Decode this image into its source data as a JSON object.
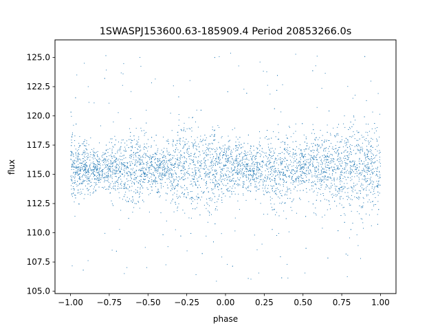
{
  "chart_data": {
    "type": "scatter",
    "title": "1SWASPJ153600.63-185909.4 Period 20853266.0s",
    "xlabel": "phase",
    "ylabel": "flux",
    "xlim": [
      -1.1,
      1.1
    ],
    "ylim": [
      104.8,
      126.5
    ],
    "x_ticks": [
      -1.0,
      -0.75,
      -0.5,
      -0.25,
      0.0,
      0.25,
      0.5,
      0.75,
      1.0
    ],
    "x_tick_labels": [
      "−1.00",
      "−0.75",
      "−0.50",
      "−0.25",
      "0.00",
      "0.25",
      "0.50",
      "0.75",
      "1.00"
    ],
    "y_ticks": [
      105.0,
      107.5,
      110.0,
      112.5,
      115.0,
      117.5,
      120.0,
      122.5,
      125.0
    ],
    "y_tick_labels": [
      "105.0",
      "107.5",
      "110.0",
      "112.5",
      "115.0",
      "117.5",
      "120.0",
      "122.5",
      "125.0"
    ],
    "grid": false,
    "legend": "none",
    "marker_color": "#1f77b4",
    "series": [
      {
        "x_range": [
          -1.0,
          1.0
        ],
        "center_flux": 115.5,
        "flux_range": [
          105.8,
          125.6
        ],
        "envelope": {
          "phase": [
            -1.0,
            -0.95,
            -0.9,
            -0.8,
            -0.7,
            -0.6,
            -0.5,
            -0.4,
            -0.3,
            -0.2,
            -0.1,
            0.0,
            0.1,
            0.2,
            0.3,
            0.4,
            0.5,
            0.6,
            0.7,
            0.8,
            0.9,
            1.0
          ],
          "spread": [
            3.0,
            2.2,
            2.0,
            1.6,
            2.0,
            3.2,
            2.0,
            1.8,
            3.4,
            3.4,
            3.0,
            2.4,
            2.0,
            1.8,
            2.8,
            3.0,
            2.0,
            2.6,
            3.0,
            3.6,
            3.4,
            3.0
          ]
        }
      }
    ]
  }
}
